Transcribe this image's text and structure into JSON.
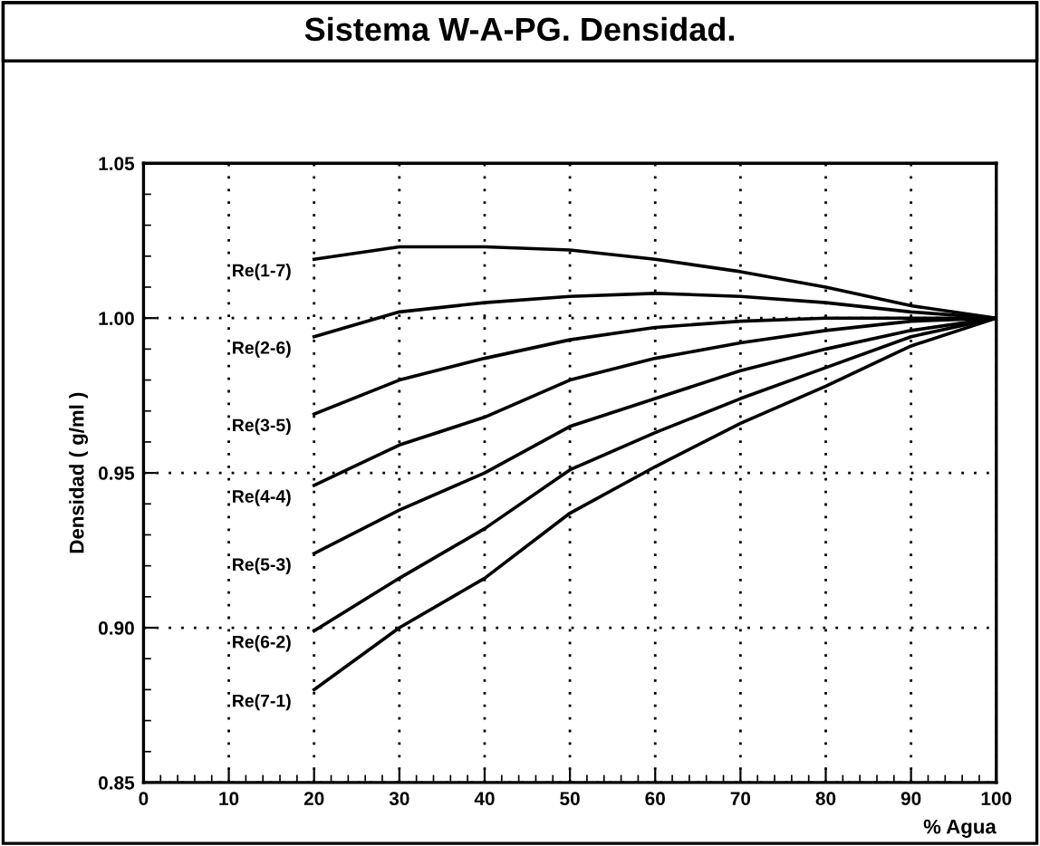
{
  "chart_data": {
    "type": "line",
    "title": "Sistema W-A-PG. Densidad.",
    "xlabel": "% Agua",
    "ylabel": "Densidad ( g/ml )",
    "x": [
      20,
      30,
      40,
      50,
      60,
      70,
      80,
      90,
      100
    ],
    "series": [
      {
        "name": "Re(1-7)",
        "color": "#000000",
        "values": [
          1.019,
          1.023,
          1.023,
          1.022,
          1.019,
          1.015,
          1.01,
          1.004,
          1.0
        ]
      },
      {
        "name": "Re(2-6)",
        "color": "#000000",
        "values": [
          0.994,
          1.002,
          1.005,
          1.007,
          1.008,
          1.007,
          1.005,
          1.002,
          1.0
        ]
      },
      {
        "name": "Re(3-5)",
        "color": "#000000",
        "values": [
          0.969,
          0.98,
          0.987,
          0.993,
          0.997,
          0.999,
          1.0,
          1.0,
          1.0
        ]
      },
      {
        "name": "Re(4-4)",
        "color": "#000000",
        "values": [
          0.946,
          0.959,
          0.968,
          0.98,
          0.987,
          0.992,
          0.996,
          0.999,
          1.0
        ]
      },
      {
        "name": "Re(5-3)",
        "color": "#000000",
        "values": [
          0.924,
          0.938,
          0.95,
          0.965,
          0.974,
          0.983,
          0.99,
          0.996,
          1.0
        ]
      },
      {
        "name": "Re(6-2)",
        "color": "#000000",
        "values": [
          0.899,
          0.916,
          0.932,
          0.951,
          0.963,
          0.974,
          0.984,
          0.994,
          1.0
        ]
      },
      {
        "name": "Re(7-1)",
        "color": "#000000",
        "values": [
          0.88,
          0.9,
          0.916,
          0.937,
          0.952,
          0.966,
          0.978,
          0.991,
          1.0
        ]
      }
    ],
    "xlim": [
      0,
      100
    ],
    "xticks": [
      0,
      10,
      20,
      30,
      40,
      50,
      60,
      70,
      80,
      90,
      100
    ],
    "ylim": [
      0.85,
      1.05
    ],
    "yticks": [
      {
        "value": 0.85,
        "label": "0.85"
      },
      {
        "value": 0.9,
        "label": "0.90"
      },
      {
        "value": 0.95,
        "label": "0.95"
      },
      {
        "value": 1.0,
        "label": "1.00"
      },
      {
        "value": 1.05,
        "label": "1.05"
      }
    ],
    "grid": true,
    "legend": false,
    "marker": "none",
    "line_style": "solid"
  }
}
